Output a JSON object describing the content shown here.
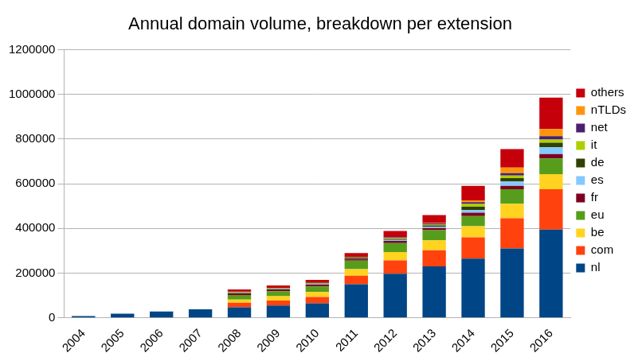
{
  "chart_data": {
    "type": "bar",
    "title": "Annual domain volume, breakdown per extension",
    "categories": [
      "2004",
      "2005",
      "2006",
      "2007",
      "2008",
      "2009",
      "2010",
      "2011",
      "2012",
      "2013",
      "2014",
      "2015",
      "2016"
    ],
    "series": [
      {
        "name": "nl",
        "color": "#004586",
        "values": [
          8000,
          18000,
          28000,
          38000,
          47000,
          55000,
          65000,
          150000,
          197000,
          230000,
          265000,
          310000,
          395000
        ]
      },
      {
        "name": "com",
        "color": "#ff420e",
        "values": [
          0,
          0,
          0,
          0,
          20000,
          22000,
          28000,
          38000,
          60000,
          72000,
          95000,
          135000,
          180000
        ]
      },
      {
        "name": "be",
        "color": "#ffd320",
        "values": [
          0,
          0,
          0,
          0,
          15000,
          20000,
          22000,
          30000,
          37000,
          45000,
          50000,
          65000,
          68000
        ]
      },
      {
        "name": "eu",
        "color": "#579d1c",
        "values": [
          0,
          0,
          0,
          0,
          20000,
          22000,
          25000,
          38000,
          40000,
          45000,
          45000,
          65000,
          70000
        ]
      },
      {
        "name": "fr",
        "color": "#7e0021",
        "values": [
          0,
          0,
          0,
          0,
          8000,
          8000,
          8000,
          8000,
          10000,
          10000,
          15000,
          15000,
          20000
        ]
      },
      {
        "name": "es",
        "color": "#83caff",
        "values": [
          0,
          0,
          0,
          0,
          2000,
          2000,
          2000,
          2000,
          4000,
          5000,
          12000,
          20000,
          30000
        ]
      },
      {
        "name": "de",
        "color": "#314004",
        "values": [
          0,
          0,
          0,
          0,
          2000,
          2000,
          3000,
          3000,
          5000,
          6000,
          15000,
          15000,
          20000
        ]
      },
      {
        "name": "it",
        "color": "#aecf00",
        "values": [
          0,
          0,
          0,
          0,
          2000,
          2000,
          2000,
          2000,
          3000,
          4000,
          12000,
          12000,
          15000
        ]
      },
      {
        "name": "net",
        "color": "#4b1f6f",
        "values": [
          0,
          0,
          0,
          0,
          1000,
          1000,
          2000,
          2000,
          4000,
          5000,
          8000,
          10000,
          15000
        ]
      },
      {
        "name": "nTLDs",
        "color": "#ff950e",
        "values": [
          0,
          0,
          0,
          0,
          0,
          0,
          0,
          0,
          0,
          2000,
          8000,
          25000,
          32000
        ]
      },
      {
        "name": "others",
        "color": "#c5000b",
        "values": [
          0,
          0,
          0,
          0,
          10000,
          11000,
          13000,
          17000,
          28000,
          36000,
          65000,
          83000,
          140000
        ]
      }
    ],
    "ylim": [
      0,
      1200000
    ],
    "yticks": [
      0,
      200000,
      400000,
      600000,
      800000,
      1000000,
      1200000
    ],
    "stacked": true,
    "grid": true,
    "legend": "right"
  }
}
